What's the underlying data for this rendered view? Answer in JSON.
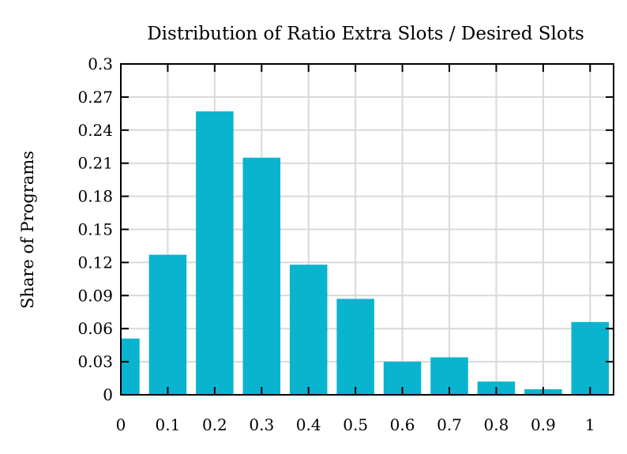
{
  "chart_data": {
    "type": "bar",
    "title": "Distribution of Ratio Extra Slots / Desired Slots",
    "xlabel": "",
    "ylabel": "Share of Programs",
    "x": [
      0,
      0.1,
      0.2,
      0.3,
      0.4,
      0.5,
      0.6,
      0.7,
      0.8,
      0.9,
      1
    ],
    "values": [
      0.051,
      0.127,
      0.257,
      0.215,
      0.118,
      0.087,
      0.03,
      0.034,
      0.012,
      0.005,
      0.066
    ],
    "xlim": [
      0,
      1.05
    ],
    "ylim": [
      0,
      0.3
    ],
    "xticks": [
      "0",
      "0.1",
      "0.2",
      "0.3",
      "0.4",
      "0.5",
      "0.6",
      "0.7",
      "0.8",
      "0.9",
      "1"
    ],
    "yticks": [
      "0",
      "0.03",
      "0.06",
      "0.09",
      "0.12",
      "0.15",
      "0.18",
      "0.21",
      "0.24",
      "0.27",
      "0.3"
    ],
    "bar_color": "#0ab4cf",
    "grid": true
  }
}
